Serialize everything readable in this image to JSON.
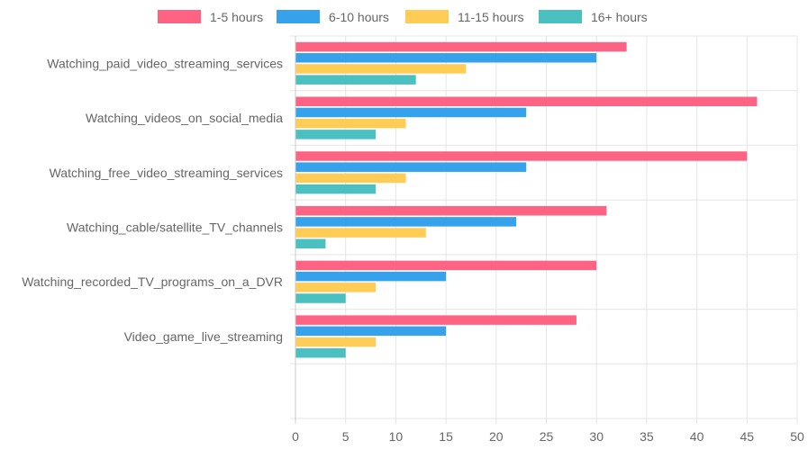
{
  "chart_data": {
    "type": "bar",
    "orientation": "horizontal",
    "title": "",
    "xlabel": "",
    "ylabel": "",
    "xlim": [
      0,
      50
    ],
    "x_ticks": [
      0,
      5,
      10,
      15,
      20,
      25,
      30,
      35,
      40,
      45,
      50
    ],
    "grid": true,
    "legend_position": "top",
    "categories": [
      "Watching_paid_video_streaming_services",
      "Watching_videos_on_social_media",
      "Watching_free_video_streaming_services",
      "Watching_cable/satellite_TV_channels",
      "Watching_recorded_TV_programs_on_a_DVR",
      "Video_game_live_streaming"
    ],
    "series": [
      {
        "name": "1-5 hours",
        "color": "#ff6384",
        "values": [
          33,
          46,
          45,
          31,
          30,
          28
        ]
      },
      {
        "name": "6-10 hours",
        "color": "#36a2eb",
        "values": [
          30,
          23,
          23,
          22,
          15,
          15
        ]
      },
      {
        "name": "11-15 hours",
        "color": "#ffcd56",
        "values": [
          17,
          11,
          11,
          13,
          8,
          8
        ]
      },
      {
        "name": "16+ hours",
        "color": "#4bc0c0",
        "values": [
          12,
          8,
          8,
          3,
          5,
          5
        ]
      }
    ]
  }
}
